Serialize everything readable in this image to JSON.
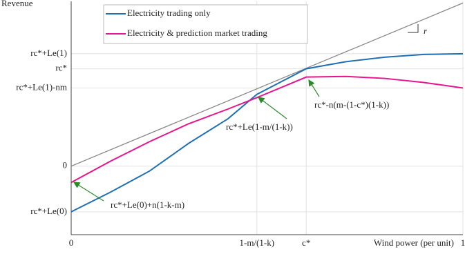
{
  "chart_data": {
    "type": "line",
    "ylabel": "Revenue",
    "xlabel": "Wind power (per unit)",
    "x": [
      0,
      0.1,
      0.2,
      0.3,
      0.4,
      0.474,
      0.6,
      0.7,
      0.8,
      0.9,
      1
    ],
    "series": [
      {
        "name": "Electricity trading only",
        "color": "#1f6fb4",
        "values": [
          -0.28,
          -0.16,
          -0.03,
          0.14,
          0.29,
          0.44,
          0.597,
          0.64,
          0.668,
          0.685,
          0.689
        ]
      },
      {
        "name": "Electricity & prediction market trading",
        "color": "#e8138e",
        "values": [
          -0.1,
          0.03,
          0.15,
          0.26,
          0.35,
          0.42,
          0.546,
          0.55,
          0.538,
          0.513,
          0.479
        ]
      }
    ],
    "reference_line": {
      "x": [
        0,
        1
      ],
      "values": [
        0,
        1
      ],
      "color": "#888888"
    },
    "slope_label": "r",
    "xlim": [
      0,
      1
    ],
    "ylim": [
      -0.42,
      1.01
    ],
    "xticks": [
      0,
      {
        "value": 0.474,
        "label": "1-m/(1-k)"
      },
      {
        "value": 0.6,
        "label": "c*"
      },
      1
    ],
    "yticks": [
      {
        "value": -0.28,
        "label": "rc*+Le(0)"
      },
      0,
      {
        "value": 0.479,
        "label": "rc*+Le(1)-nm"
      },
      {
        "value": 0.597,
        "label": "rc*"
      },
      {
        "value": 0.689,
        "label": "rc*+Le(1)"
      }
    ],
    "grid": true,
    "legend": "upper left",
    "annotations": [
      "rc*+Le(0)+n(1-k-m)",
      "rc*+Le(1-m/(1-k))",
      "rc*-n(m-(1-c*)(1-k))"
    ]
  }
}
